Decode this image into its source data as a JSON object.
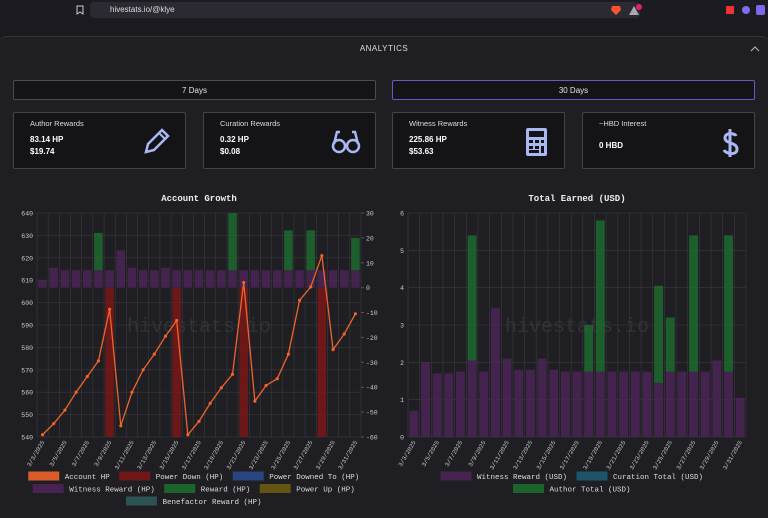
{
  "browser": {
    "url": "hivestats.io/@klye"
  },
  "header": {
    "title": "ANALYTICS"
  },
  "tabs": [
    "7 Days",
    "30 Days"
  ],
  "cards": [
    {
      "title": "Author Rewards",
      "lines": [
        "83.14 HP",
        "$19.74"
      ]
    },
    {
      "title": "Curation Rewards",
      "lines": [
        "0.32 HP",
        "$0.08"
      ]
    },
    {
      "title": "Witness Rewards",
      "lines": [
        "225.86 HP",
        "$53.63"
      ]
    },
    {
      "title": "~HBD Interest",
      "lines": [
        "0 HBD"
      ]
    }
  ],
  "chart_data": [
    {
      "type": "bar",
      "title": "Account Growth",
      "watermark": "hivestats.io",
      "categories": [
        "3/3/2025",
        null,
        "3/5/2025",
        null,
        "3/7/2025",
        null,
        "3/9/2025",
        null,
        "3/11/2025",
        null,
        "3/13/2025",
        null,
        "3/15/2025",
        null,
        "3/17/2025",
        null,
        "3/19/2025",
        null,
        "3/21/2025",
        null,
        "3/23/2025",
        null,
        "3/25/2025",
        null,
        "3/27/2025",
        null,
        "3/29/2025",
        null,
        "3/31/2025"
      ],
      "ylim": [
        540,
        640
      ],
      "yticks": [
        540,
        550,
        560,
        570,
        580,
        590,
        600,
        610,
        620,
        630,
        640
      ],
      "y2lim": [
        -60,
        30
      ],
      "y2ticks": [
        -60,
        -50,
        -40,
        -30,
        -20,
        -10,
        0,
        10,
        20,
        30
      ],
      "grid": true,
      "series": [
        {
          "name": "Account HP",
          "type": "line",
          "color": "#f0632a",
          "values": [
            541,
            546,
            552,
            560,
            567,
            574,
            597,
            545,
            560,
            570,
            577,
            585,
            592,
            541,
            547,
            555,
            562,
            568,
            609,
            556,
            563,
            566,
            577,
            601,
            607,
            621,
            579,
            586,
            595
          ]
        },
        {
          "name": "Power Down (HP)",
          "type": "bar",
          "axis": "y2",
          "color": "#7a1717",
          "values": [
            null,
            null,
            null,
            null,
            null,
            null,
            -60,
            null,
            null,
            null,
            null,
            null,
            -60,
            null,
            null,
            null,
            null,
            null,
            -60,
            null,
            null,
            null,
            null,
            null,
            null,
            -60,
            null,
            null,
            null
          ]
        },
        {
          "name": "Power Downed To (HP)",
          "type": "bar",
          "axis": "y2",
          "color": "#2b4a8a",
          "values": [
            null,
            null,
            null,
            null,
            null,
            null,
            null,
            null,
            null,
            null,
            null,
            null,
            null,
            null,
            null,
            null,
            null,
            null,
            null,
            null,
            null,
            null,
            null,
            null,
            null,
            null,
            null,
            null,
            null
          ]
        },
        {
          "name": "Witness Reward (HP)",
          "type": "bar",
          "axis": "y2",
          "color": "#4b2456",
          "values": [
            3,
            8,
            7,
            7,
            7,
            7,
            7,
            15,
            8,
            7,
            7,
            8,
            7,
            7,
            7,
            7,
            7,
            7,
            7,
            7,
            7,
            7,
            7,
            7,
            7,
            7,
            7,
            7,
            7
          ]
        },
        {
          "name": "Reward (HP)",
          "type": "bar",
          "axis": "y2",
          "color": "#1d6b2e",
          "values": [
            null,
            null,
            null,
            null,
            null,
            15,
            null,
            null,
            null,
            null,
            null,
            null,
            null,
            null,
            null,
            null,
            null,
            23,
            null,
            null,
            null,
            null,
            16,
            null,
            16,
            null,
            null,
            null,
            13
          ]
        },
        {
          "name": "Power Up (HP)",
          "type": "bar",
          "axis": "y2",
          "color": "#6b5a12",
          "values": [
            null,
            null,
            null,
            null,
            null,
            null,
            null,
            null,
            null,
            null,
            null,
            null,
            null,
            null,
            null,
            null,
            null,
            null,
            null,
            null,
            null,
            null,
            null,
            null,
            null,
            null,
            null,
            null,
            null
          ]
        },
        {
          "name": "Benefactor Reward (HP)",
          "type": "bar",
          "axis": "y2",
          "color": "#2e5856",
          "values": [
            null,
            null,
            null,
            null,
            null,
            null,
            null,
            null,
            null,
            null,
            null,
            null,
            null,
            null,
            null,
            null,
            null,
            null,
            null,
            null,
            null,
            null,
            null,
            null,
            null,
            null,
            null,
            null,
            null
          ]
        }
      ]
    },
    {
      "type": "bar",
      "title": "Total Earned (USD)",
      "watermark": "hivestats.io",
      "categories": [
        "3/3/2025",
        null,
        "3/5/2025",
        null,
        "3/7/2025",
        null,
        "3/9/2025",
        null,
        "3/11/2025",
        null,
        "3/13/2025",
        null,
        "3/15/2025",
        null,
        "3/17/2025",
        null,
        "3/19/2025",
        null,
        "3/21/2025",
        null,
        "3/23/2025",
        null,
        "3/25/2025",
        null,
        "3/27/2025",
        null,
        "3/29/2025",
        null,
        "3/31/2025"
      ],
      "ylim": [
        0,
        6
      ],
      "yticks": [
        0,
        1,
        2,
        3,
        4,
        5,
        6
      ],
      "grid": true,
      "series": [
        {
          "name": "Witness Reward (USD)",
          "type": "bar",
          "color": "#4b2456",
          "values": [
            0.7,
            2.0,
            1.7,
            1.7,
            1.75,
            2.05,
            1.75,
            3.45,
            2.1,
            1.8,
            1.8,
            2.1,
            1.8,
            1.75,
            1.75,
            1.75,
            1.75,
            1.75,
            1.75,
            1.75,
            1.75,
            1.45,
            1.75,
            1.75,
            1.75,
            1.75,
            2.05,
            1.75,
            1.05
          ]
        },
        {
          "name": "Curation Total (USD)",
          "type": "bar",
          "color": "#1e5a70",
          "values": [
            null,
            null,
            null,
            null,
            null,
            null,
            null,
            null,
            null,
            null,
            null,
            null,
            null,
            null,
            null,
            null,
            null,
            null,
            null,
            null,
            null,
            null,
            null,
            null,
            null,
            null,
            null,
            null,
            null
          ]
        },
        {
          "name": "Author Total (USD)",
          "type": "bar",
          "color": "#1d6b2e",
          "values": [
            null,
            null,
            null,
            null,
            null,
            3.35,
            null,
            null,
            null,
            null,
            null,
            null,
            null,
            null,
            null,
            1.25,
            4.05,
            null,
            null,
            null,
            null,
            2.6,
            1.45,
            null,
            3.65,
            null,
            null,
            3.65,
            null
          ]
        }
      ]
    }
  ]
}
